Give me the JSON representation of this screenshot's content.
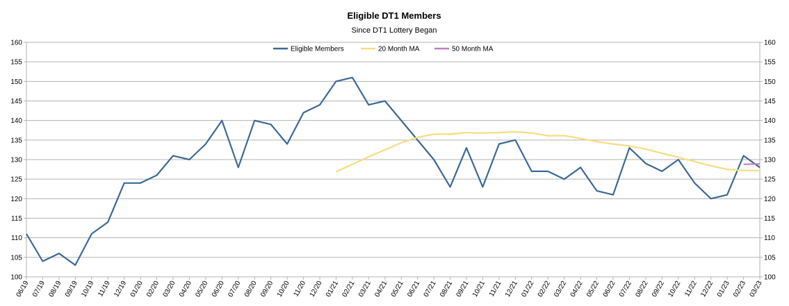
{
  "chart_data": {
    "type": "line",
    "title": "Eligible DT1 Members",
    "subtitle": "Since DT1 Lottery Began",
    "xlabel": "",
    "ylabel": "",
    "ylim": [
      100,
      160
    ],
    "y_ticks": [
      "100",
      "105",
      "110",
      "115",
      "120",
      "125",
      "130",
      "135",
      "140",
      "145",
      "150",
      "155",
      "160"
    ],
    "right_axis": true,
    "grid": true,
    "legend": "top-center",
    "categories": [
      "06/19",
      "07/19",
      "08/19",
      "09/19",
      "10/19",
      "11/19",
      "12/19",
      "01/20",
      "02/20",
      "03/20",
      "04/20",
      "05/20",
      "06/20",
      "07/20",
      "08/20",
      "09/20",
      "10/20",
      "11/20",
      "12/20",
      "01/21",
      "02/21",
      "03/21",
      "04/21",
      "05/21",
      "06/21",
      "07/21",
      "08/21",
      "09/21",
      "10/21",
      "11/21",
      "12/21",
      "01/22",
      "02/22",
      "03/22",
      "04/22",
      "05/22",
      "06/22",
      "07/22",
      "08/22",
      "09/22",
      "10/22",
      "11/22",
      "12/22",
      "01/23",
      "02/23",
      "03/23"
    ],
    "series": [
      {
        "name": "Eligible Members",
        "color": "#3B6996",
        "values": [
          111,
          104,
          106,
          103,
          111,
          114,
          124,
          124,
          126,
          131,
          130,
          134,
          140,
          128,
          140,
          139,
          134,
          142,
          144,
          150,
          151,
          144,
          145,
          null,
          null,
          130,
          123,
          133,
          123,
          134,
          135,
          127,
          127,
          125,
          128,
          122,
          121,
          133,
          129,
          127,
          130,
          124,
          120,
          121,
          131,
          128
        ]
      },
      {
        "name": "20 Month MA",
        "color": "#F7DC80",
        "values": [
          null,
          null,
          null,
          null,
          null,
          null,
          null,
          null,
          null,
          null,
          null,
          null,
          null,
          null,
          null,
          null,
          null,
          null,
          null,
          126.9,
          128.8,
          130.7,
          132.5,
          134.3,
          135.7,
          136.5,
          136.5,
          136.9,
          136.8,
          136.9,
          137.1,
          136.8,
          136.1,
          136.1,
          135.4,
          134.6,
          134,
          133.5,
          132.7,
          131.6,
          130.6,
          129.5,
          128.4,
          127.5,
          127.2,
          127.2
        ]
      },
      {
        "name": "50 Month MA",
        "color": "#C47BC0",
        "values": [
          null,
          null,
          null,
          null,
          null,
          null,
          null,
          null,
          null,
          null,
          null,
          null,
          null,
          null,
          null,
          null,
          null,
          null,
          null,
          null,
          null,
          null,
          null,
          null,
          null,
          null,
          null,
          null,
          null,
          null,
          null,
          null,
          null,
          null,
          null,
          null,
          null,
          null,
          null,
          null,
          null,
          null,
          null,
          null,
          128.8,
          128.9
        ]
      }
    ]
  }
}
